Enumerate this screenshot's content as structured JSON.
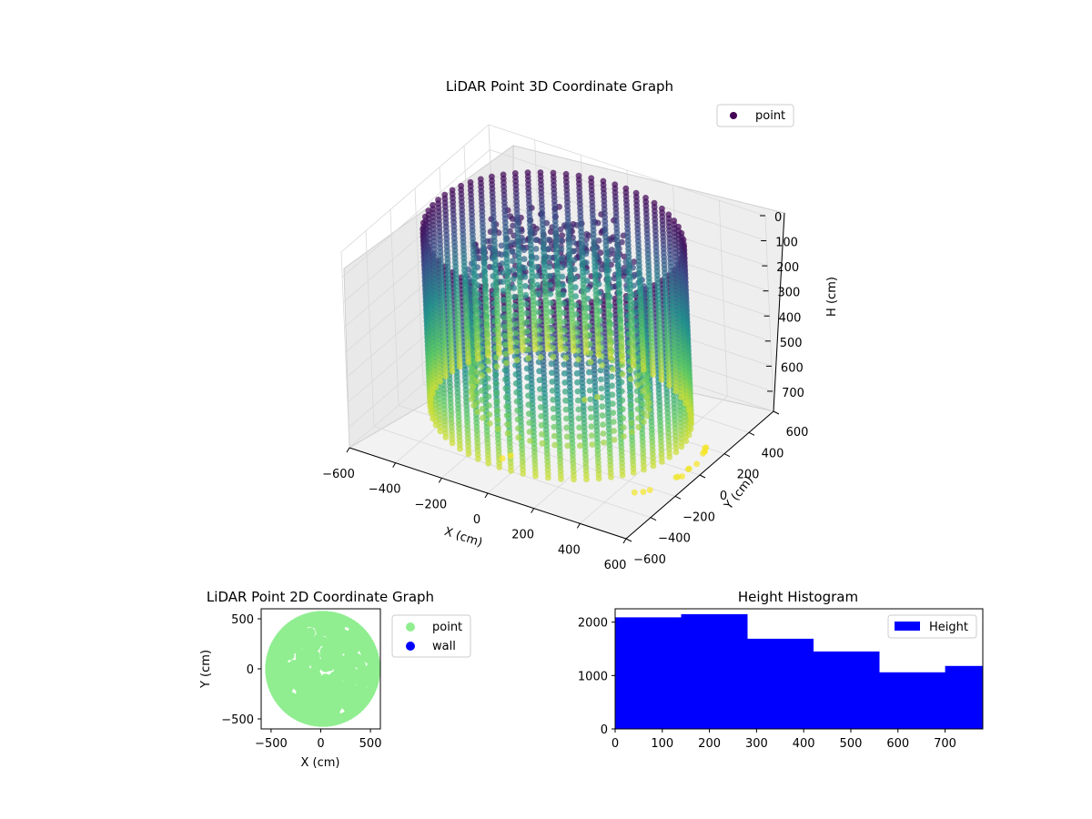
{
  "chart_data": [
    {
      "type": "scatter",
      "title": "LiDAR Point 3D Coordinate Graph",
      "xlabel": "X (cm)",
      "ylabel": "Y (cm)",
      "zlabel": "H (cm)",
      "xlim": [
        -600,
        600
      ],
      "ylim": [
        -600,
        600
      ],
      "zlim": [
        0,
        780
      ],
      "z_axis_inverted": true,
      "x_ticks": [
        "−600",
        "−400",
        "−200",
        "0",
        "200",
        "400",
        "600"
      ],
      "y_ticks": [
        "−600",
        "−400",
        "−200",
        "0",
        "200",
        "400",
        "600"
      ],
      "z_ticks": [
        "0",
        "100",
        "200",
        "300",
        "400",
        "500",
        "600",
        "700"
      ],
      "legend": [
        {
          "label": "point",
          "color": "#440154"
        }
      ],
      "legend_position": "upper right",
      "colormap": "viridis",
      "description_of_data": {
        "shape": "cylindrical wall of vertical point columns plus a roof cluster",
        "wall_radius_cm": 500,
        "height_range_cm": [
          0,
          780
        ]
      }
    },
    {
      "type": "scatter",
      "title": "LiDAR Point 2D Coordinate Graph",
      "xlabel": "X (cm)",
      "ylabel": "Y (cm)",
      "xlim": [
        -600,
        600
      ],
      "ylim": [
        -600,
        600
      ],
      "x_ticks": [
        "−500",
        "0",
        "500"
      ],
      "y_ticks": [
        "−500",
        "0",
        "500"
      ],
      "series": [
        {
          "name": "point",
          "color": "#90ee90"
        },
        {
          "name": "wall",
          "color": "#0000ff"
        }
      ],
      "legend_position": "outside right"
    },
    {
      "type": "bar",
      "title": "Height Histogram",
      "xlim": [
        0,
        780
      ],
      "ylim": [
        0,
        2250
      ],
      "x_ticks": [
        "0",
        "100",
        "200",
        "300",
        "400",
        "500",
        "600",
        "700"
      ],
      "y_ticks": [
        "0",
        "1000",
        "2000"
      ],
      "bin_edges": [
        0,
        140,
        280,
        420,
        560,
        700,
        780
      ],
      "values": [
        2090,
        2150,
        1690,
        1450,
        1060,
        1180
      ],
      "series": [
        {
          "name": "Height",
          "color": "#0000ff"
        }
      ],
      "legend_position": "upper right"
    }
  ]
}
